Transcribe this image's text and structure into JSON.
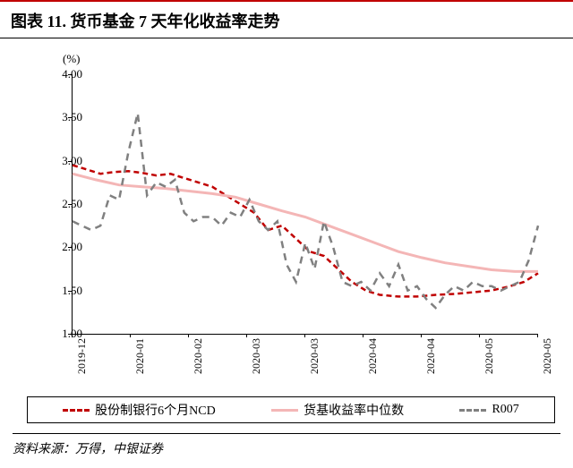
{
  "title": "图表 11. 货币基金 7 天年化收益率走势",
  "chart": {
    "type": "line",
    "y_unit": "(%)",
    "ylim": [
      1.0,
      4.0
    ],
    "ytick_step": 0.5,
    "yticks": [
      1.0,
      1.5,
      2.0,
      2.5,
      3.0,
      3.5,
      4.0
    ],
    "ytick_labels": [
      "1.00",
      "1.50",
      "2.00",
      "2.50",
      "3.00",
      "3.50",
      "4.00"
    ],
    "x_categories": [
      "2019-12",
      "2020-01",
      "2020-02",
      "2020-03",
      "2020-03",
      "2020-04",
      "2020-04",
      "2020-05",
      "2020-05"
    ],
    "x_positions": [
      0,
      0.125,
      0.25,
      0.375,
      0.5,
      0.625,
      0.75,
      0.875,
      1.0
    ],
    "background_color": "#ffffff",
    "axis_color": "#000000",
    "label_fontsize": 13,
    "series": [
      {
        "name": "股份制银行6个月NCD",
        "color": "#c00000",
        "dash": "6,4",
        "width": 2.5,
        "x": [
          0.0,
          0.03,
          0.06,
          0.09,
          0.12,
          0.15,
          0.18,
          0.21,
          0.24,
          0.27,
          0.3,
          0.33,
          0.36,
          0.39,
          0.42,
          0.45,
          0.48,
          0.51,
          0.54,
          0.57,
          0.6,
          0.63,
          0.66,
          0.7,
          0.74,
          0.78,
          0.82,
          0.86,
          0.9,
          0.94,
          0.97,
          1.0
        ],
        "y": [
          2.95,
          2.9,
          2.85,
          2.87,
          2.88,
          2.86,
          2.83,
          2.85,
          2.8,
          2.75,
          2.7,
          2.6,
          2.5,
          2.4,
          2.2,
          2.25,
          2.1,
          1.95,
          1.9,
          1.75,
          1.6,
          1.5,
          1.45,
          1.43,
          1.43,
          1.45,
          1.46,
          1.48,
          1.5,
          1.55,
          1.6,
          1.7
        ]
      },
      {
        "name": "货基收益率中位数",
        "color": "#f4b6b6",
        "dash": "none",
        "width": 3,
        "x": [
          0.0,
          0.05,
          0.1,
          0.15,
          0.2,
          0.25,
          0.3,
          0.35,
          0.4,
          0.45,
          0.5,
          0.55,
          0.6,
          0.65,
          0.7,
          0.75,
          0.8,
          0.85,
          0.9,
          0.95,
          1.0
        ],
        "y": [
          2.85,
          2.78,
          2.72,
          2.7,
          2.68,
          2.65,
          2.62,
          2.58,
          2.5,
          2.42,
          2.35,
          2.25,
          2.15,
          2.05,
          1.95,
          1.88,
          1.82,
          1.78,
          1.74,
          1.72,
          1.72
        ]
      },
      {
        "name": "R007",
        "color": "#808080",
        "dash": "8,6",
        "width": 2.5,
        "x": [
          0.0,
          0.02,
          0.04,
          0.06,
          0.08,
          0.1,
          0.12,
          0.14,
          0.16,
          0.18,
          0.2,
          0.22,
          0.24,
          0.26,
          0.28,
          0.3,
          0.32,
          0.34,
          0.36,
          0.38,
          0.4,
          0.42,
          0.44,
          0.46,
          0.48,
          0.5,
          0.52,
          0.54,
          0.56,
          0.58,
          0.6,
          0.62,
          0.64,
          0.66,
          0.68,
          0.7,
          0.72,
          0.74,
          0.76,
          0.78,
          0.8,
          0.82,
          0.84,
          0.86,
          0.88,
          0.9,
          0.92,
          0.94,
          0.96,
          0.98,
          1.0
        ],
        "y": [
          2.3,
          2.25,
          2.2,
          2.25,
          2.6,
          2.55,
          3.1,
          3.55,
          2.6,
          2.75,
          2.7,
          2.78,
          2.4,
          2.3,
          2.35,
          2.35,
          2.25,
          2.4,
          2.35,
          2.55,
          2.3,
          2.2,
          2.3,
          1.8,
          1.6,
          2.05,
          1.75,
          2.3,
          2.0,
          1.6,
          1.55,
          1.6,
          1.5,
          1.7,
          1.55,
          1.8,
          1.5,
          1.55,
          1.4,
          1.3,
          1.45,
          1.55,
          1.5,
          1.6,
          1.55,
          1.55,
          1.5,
          1.55,
          1.6,
          1.85,
          2.25
        ]
      }
    ]
  },
  "source": "资料来源：万得，中银证券"
}
